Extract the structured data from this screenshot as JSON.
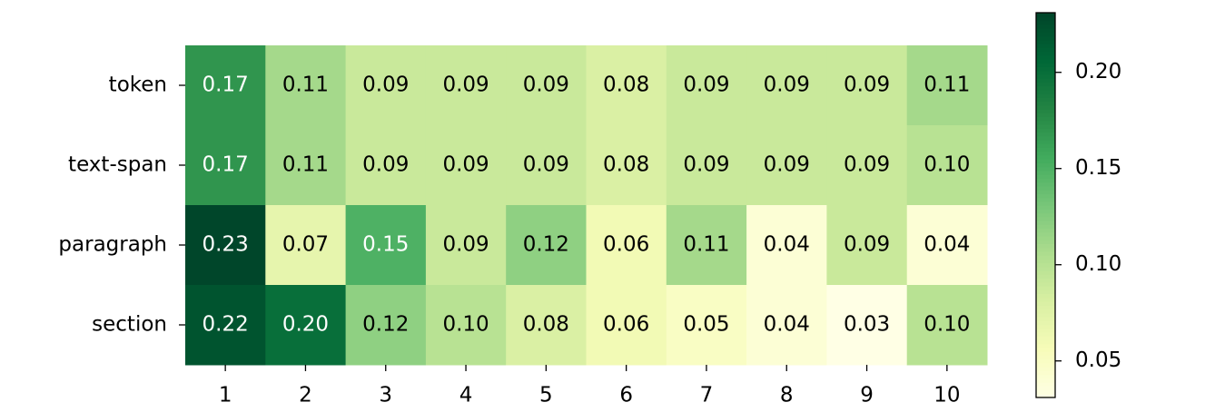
{
  "chart_data": {
    "type": "heatmap",
    "categories": [
      1,
      2,
      3,
      4,
      5,
      6,
      7,
      8,
      9,
      10
    ],
    "rows": [
      "token",
      "text-span",
      "paragraph",
      "section"
    ],
    "values": [
      [
        0.17,
        0.11,
        0.09,
        0.09,
        0.09,
        0.08,
        0.09,
        0.09,
        0.09,
        0.11
      ],
      [
        0.17,
        0.11,
        0.09,
        0.09,
        0.09,
        0.08,
        0.09,
        0.09,
        0.09,
        0.1
      ],
      [
        0.23,
        0.07,
        0.15,
        0.09,
        0.12,
        0.06,
        0.11,
        0.04,
        0.09,
        0.04
      ],
      [
        0.22,
        0.2,
        0.12,
        0.1,
        0.08,
        0.06,
        0.05,
        0.04,
        0.03,
        0.1
      ]
    ],
    "value_labels": [
      [
        "0.17",
        "0.11",
        "0.09",
        "0.09",
        "0.09",
        "0.08",
        "0.09",
        "0.09",
        "0.09",
        "0.11"
      ],
      [
        "0.17",
        "0.11",
        "0.09",
        "0.09",
        "0.09",
        "0.08",
        "0.09",
        "0.09",
        "0.09",
        "0.10"
      ],
      [
        "0.23",
        "0.07",
        "0.15",
        "0.09",
        "0.12",
        "0.06",
        "0.11",
        "0.04",
        "0.09",
        "0.04"
      ],
      [
        "0.22",
        "0.20",
        "0.12",
        "0.10",
        "0.08",
        "0.06",
        "0.05",
        "0.04",
        "0.03",
        "0.10"
      ]
    ],
    "colormap": [
      "#ffffe5",
      "#f7fcb9",
      "#d9f0a3",
      "#addd8e",
      "#78c679",
      "#41ab5d",
      "#238443",
      "#006837",
      "#004529"
    ],
    "clim": [
      0.031,
      0.231
    ],
    "cticks": [
      0.05,
      {
        "value": 0.1,
        "label": "0.10"
      },
      0.15,
      {
        "value": 0.2,
        "label": "0.20"
      }
    ]
  }
}
